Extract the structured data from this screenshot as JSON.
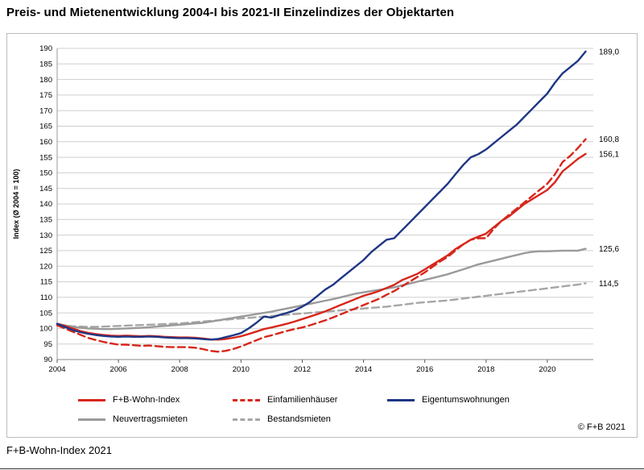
{
  "page": {
    "title": "Preis- und Mietenentwicklung 2004-I bis 2021-II Einzelindizes der Objektarten",
    "footer": "F+B-Wohn-Index 2021",
    "copyright": "© F+B 2021"
  },
  "chart_data": {
    "type": "line",
    "title": "Preis- und Mietenentwicklung 2004-I bis 2021-II Einzelindizes der Objektarten",
    "ylabel": "Index (Ø 2004 = 100)",
    "y_min": 90,
    "y_max": 190,
    "y_step": 5,
    "x_start": 2004,
    "x_end": 2021.5,
    "x_tick_years": [
      "2004",
      "2006",
      "2008",
      "2010",
      "2012",
      "2014",
      "2016",
      "2018",
      "2020"
    ],
    "quarter_step": 0.25,
    "grid": true,
    "legend_position": "bottom",
    "legend_rows": [
      [
        0,
        1,
        2
      ],
      [
        3,
        4
      ]
    ],
    "draw_order": [
      4,
      3,
      1,
      0,
      2
    ],
    "series": [
      {
        "name": "F+B-Wohn-Index",
        "color": "#d7261b",
        "dash": false,
        "end_label": "156,1",
        "values": [
          101.5,
          100.8,
          100.0,
          99.2,
          98.6,
          98.2,
          97.9,
          97.7,
          97.6,
          97.7,
          97.6,
          97.5,
          97.6,
          97.5,
          97.3,
          97.2,
          97.1,
          97.1,
          97.0,
          96.8,
          96.5,
          96.4,
          96.6,
          97.0,
          97.5,
          98.2,
          99.0,
          99.8,
          100.3,
          100.9,
          101.5,
          102.2,
          103.0,
          103.8,
          104.6,
          105.5,
          106.5,
          107.5,
          108.5,
          109.5,
          110.5,
          111.2,
          112.0,
          113.0,
          114.0,
          115.5,
          116.5,
          117.5,
          119.0,
          120.5,
          122.0,
          123.5,
          125.5,
          127.0,
          128.5,
          129.5,
          130.5,
          132.5,
          134.5,
          136.0,
          138.0,
          140.0,
          141.5,
          143.0,
          144.5,
          147.0,
          150.5,
          152.5,
          154.5,
          156.1
        ]
      },
      {
        "name": "Einfamilienhäuser",
        "color": "#d7261b",
        "dash": true,
        "end_label": "160,8",
        "values": [
          101.0,
          100.0,
          99.0,
          98.0,
          97.0,
          96.3,
          95.7,
          95.2,
          94.8,
          94.8,
          94.6,
          94.4,
          94.5,
          94.3,
          94.1,
          94.0,
          94.0,
          94.0,
          93.8,
          93.4,
          92.8,
          92.5,
          92.8,
          93.4,
          94.2,
          95.2,
          96.2,
          97.2,
          97.8,
          98.5,
          99.2,
          99.8,
          100.3,
          101.0,
          101.8,
          102.6,
          103.5,
          104.5,
          105.5,
          106.5,
          107.5,
          108.5,
          109.5,
          110.8,
          112.0,
          113.5,
          115.0,
          116.5,
          118.0,
          119.8,
          121.5,
          123.0,
          125.0,
          127.0,
          128.5,
          129.0,
          129.0,
          132.0,
          134.5,
          136.5,
          138.5,
          140.5,
          142.5,
          144.5,
          146.5,
          149.5,
          153.5,
          155.5,
          158.0,
          160.8
        ]
      },
      {
        "name": "Eigentumswohnungen",
        "color": "#1f3685",
        "dash": false,
        "end_label": "189,0",
        "values": [
          101.5,
          100.5,
          99.5,
          98.8,
          98.3,
          97.9,
          97.6,
          97.4,
          97.3,
          97.4,
          97.3,
          97.3,
          97.4,
          97.3,
          97.1,
          97.0,
          96.9,
          96.9,
          96.8,
          96.6,
          96.4,
          96.6,
          97.2,
          97.8,
          98.5,
          100.0,
          101.8,
          103.8,
          103.5,
          104.3,
          105.0,
          105.8,
          107.0,
          108.5,
          110.5,
          112.5,
          114.0,
          116.0,
          118.0,
          120.0,
          122.0,
          124.5,
          126.5,
          128.5,
          129.0,
          131.5,
          134.0,
          136.5,
          139.0,
          141.5,
          144.0,
          146.5,
          149.5,
          152.5,
          155.0,
          156.0,
          157.5,
          159.5,
          161.5,
          163.5,
          165.5,
          168.0,
          170.5,
          173.0,
          175.5,
          179.0,
          182.0,
          184.0,
          186.0,
          189.0
        ]
      },
      {
        "name": "Neuvertragsmieten",
        "color": "#9a9a9a",
        "dash": false,
        "end_label": "125,6",
        "values": [
          101.5,
          101.0,
          100.5,
          100.2,
          100.0,
          99.9,
          99.8,
          99.8,
          99.9,
          100.0,
          100.1,
          100.2,
          100.4,
          100.6,
          100.8,
          101.0,
          101.2,
          101.4,
          101.6,
          101.8,
          102.2,
          102.6,
          103.0,
          103.4,
          103.8,
          104.2,
          104.6,
          105.0,
          105.4,
          105.9,
          106.4,
          106.9,
          107.4,
          107.9,
          108.4,
          108.9,
          109.4,
          110.0,
          110.6,
          111.2,
          111.6,
          112.0,
          112.4,
          112.8,
          113.2,
          113.8,
          114.4,
          115.0,
          115.6,
          116.2,
          116.8,
          117.4,
          118.2,
          119.0,
          119.8,
          120.6,
          121.2,
          121.8,
          122.4,
          123.0,
          123.6,
          124.2,
          124.6,
          124.8,
          124.8,
          124.9,
          125.0,
          125.0,
          125.0,
          125.6
        ]
      },
      {
        "name": "Bestandsmieten",
        "color": "#a6a6a6",
        "dash": true,
        "end_label": "114,5",
        "values": [
          101.2,
          100.9,
          100.7,
          100.6,
          100.5,
          100.5,
          100.6,
          100.7,
          100.8,
          100.9,
          101.0,
          101.1,
          101.2,
          101.3,
          101.4,
          101.5,
          101.6,
          101.8,
          102.0,
          102.2,
          102.4,
          102.6,
          102.8,
          103.0,
          103.2,
          103.4,
          103.6,
          103.8,
          104.0,
          104.2,
          104.4,
          104.6,
          104.8,
          105.0,
          105.2,
          105.4,
          105.6,
          105.8,
          106.0,
          106.2,
          106.4,
          106.6,
          106.8,
          107.0,
          107.3,
          107.6,
          107.9,
          108.2,
          108.4,
          108.6,
          108.8,
          109.0,
          109.3,
          109.6,
          109.9,
          110.2,
          110.5,
          110.8,
          111.1,
          111.4,
          111.7,
          112.0,
          112.3,
          112.6,
          112.9,
          113.2,
          113.5,
          113.8,
          114.1,
          114.5
        ]
      }
    ]
  }
}
